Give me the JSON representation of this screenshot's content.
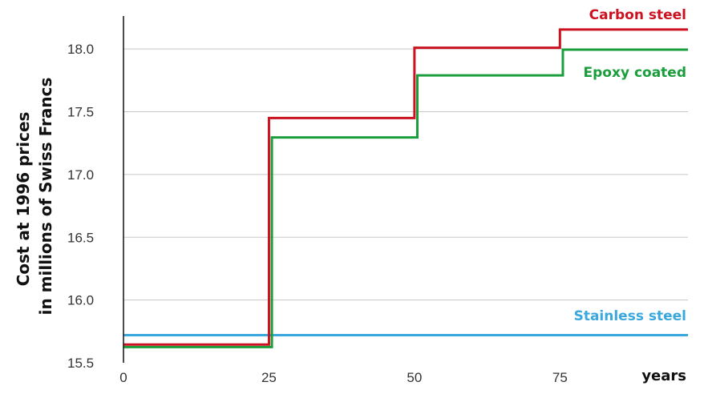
{
  "chart_data": {
    "type": "line",
    "title": "",
    "xlabel": "years",
    "ylabel": [
      "Cost at 1996 prices",
      "in millions of Swiss Francs"
    ],
    "xlim": [
      0,
      97
    ],
    "ylim": [
      15.5,
      18.25
    ],
    "x_ticks": [
      "0",
      "25",
      "50",
      "75"
    ],
    "y_ticks": [
      "15.5",
      "16.0",
      "16.5",
      "17.0",
      "17.5",
      "18.0"
    ],
    "grid": true,
    "step": true,
    "series": [
      {
        "name": "Carbon steel",
        "color": "#cc1220",
        "steps": [
          {
            "x": 0,
            "y": 15.645
          },
          {
            "x": 25,
            "y": 17.45
          },
          {
            "x": 50,
            "y": 18.01
          },
          {
            "x": 75,
            "y": 18.155
          }
        ],
        "x_end": 97
      },
      {
        "name": "Epoxy coated",
        "color": "#1a9e3c",
        "steps": [
          {
            "x": 0,
            "y": 15.625
          },
          {
            "x": 25.5,
            "y": 17.295
          },
          {
            "x": 50.5,
            "y": 17.79
          },
          {
            "x": 75.5,
            "y": 17.995
          }
        ],
        "x_end": 97
      },
      {
        "name": "Stainless steel",
        "color": "#3aa8dc",
        "steps": [
          {
            "x": 0,
            "y": 15.72
          }
        ],
        "x_end": 97
      }
    ]
  }
}
